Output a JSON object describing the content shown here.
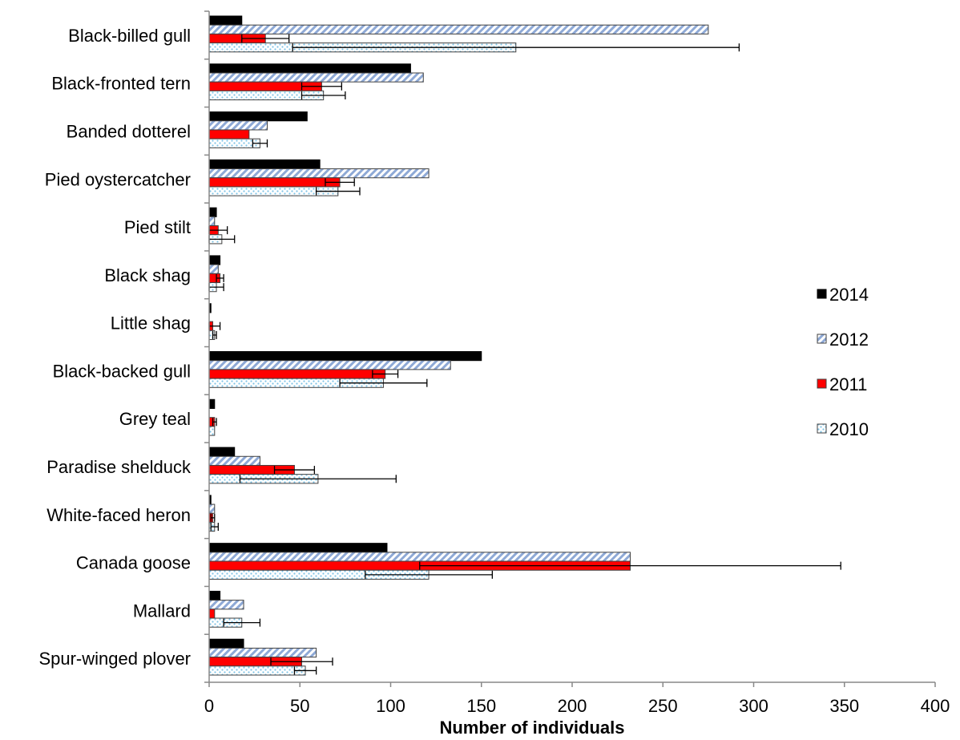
{
  "chart_data": {
    "type": "bar",
    "orientation": "horizontal",
    "title": "",
    "xlabel": "Number of individuals",
    "ylabel": "",
    "xlim": [
      0,
      400
    ],
    "xticks": [
      0,
      50,
      100,
      150,
      200,
      250,
      300,
      350,
      400
    ],
    "grid": false,
    "legend_position": "right",
    "categories": [
      "Black-billed gull",
      "Black-fronted tern",
      "Banded dotterel",
      "Pied oystercatcher",
      "Pied stilt",
      "Black shag",
      "Little shag",
      "Black-backed gull",
      "Grey teal",
      "Paradise shelduck",
      "White-faced heron",
      "Canada goose",
      "Mallard",
      "Spur-winged plover"
    ],
    "series": [
      {
        "name": "2014",
        "color": "#000000",
        "pattern": "solid",
        "values": [
          18,
          111,
          54,
          61,
          4,
          6,
          1,
          150,
          3,
          14,
          1,
          98,
          6,
          19
        ],
        "errors": [
          null,
          null,
          null,
          null,
          null,
          null,
          null,
          null,
          null,
          null,
          null,
          null,
          null,
          null
        ]
      },
      {
        "name": "2012",
        "color": "#c5d5ea",
        "pattern": "diagonal-hatch",
        "values": [
          275,
          118,
          32,
          121,
          3,
          5,
          0,
          133,
          0,
          28,
          3,
          232,
          19,
          59
        ],
        "errors": [
          null,
          null,
          null,
          null,
          null,
          null,
          null,
          null,
          null,
          null,
          null,
          null,
          null,
          null
        ]
      },
      {
        "name": "2011",
        "color": "#ff0000",
        "pattern": "solid",
        "values": [
          31,
          62,
          22,
          72,
          5,
          6,
          2,
          97,
          3,
          47,
          2,
          232,
          3,
          51
        ],
        "errors": [
          13,
          11,
          null,
          8,
          5,
          2,
          4,
          7,
          1,
          11,
          1,
          116,
          null,
          17
        ]
      },
      {
        "name": "2010",
        "color": "#dbeef8",
        "pattern": "dots",
        "values": [
          169,
          63,
          28,
          71,
          7,
          4,
          3,
          96,
          3,
          60,
          3,
          121,
          18,
          53
        ],
        "errors": [
          123,
          12,
          4,
          12,
          7,
          4,
          1,
          24,
          null,
          43,
          2,
          35,
          10,
          6
        ]
      }
    ]
  }
}
